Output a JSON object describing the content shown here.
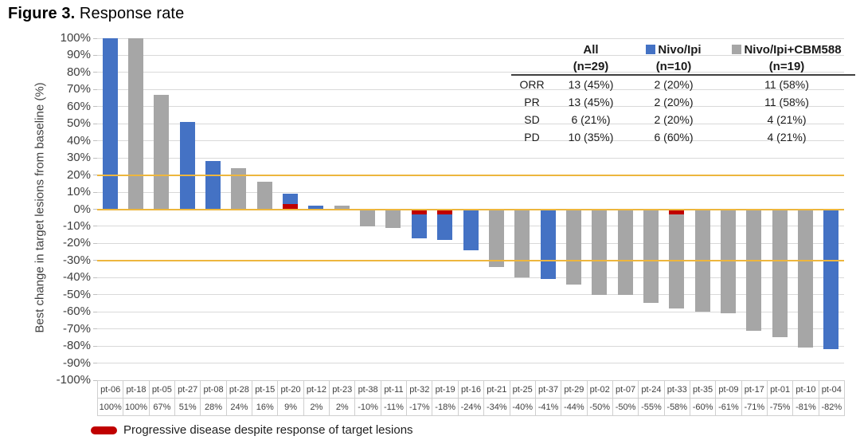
{
  "figure": {
    "label": "Figure 3.",
    "title": "Response rate"
  },
  "chart_data": {
    "type": "bar",
    "subtype": "waterfall",
    "title": "Figure 3. Response rate",
    "xlabel": "",
    "ylabel": "Best change in target lesions from baseline (%)",
    "ylim": [
      -100,
      100
    ],
    "ytick_step": 10,
    "ytick_labels": [
      "100%",
      "90%",
      "80%",
      "70%",
      "60%",
      "50%",
      "40%",
      "30%",
      "20%",
      "10%",
      "0%",
      "-10%",
      "-20%",
      "-30%",
      "-40%",
      "-50%",
      "-60%",
      "-70%",
      "-80%",
      "-90%",
      "-100%"
    ],
    "grid": true,
    "reference_lines": {
      "values": [
        20,
        0,
        -30
      ],
      "color": "#EDB63E"
    },
    "pd_segment_pct": 3,
    "series_legend": [
      {
        "name": "Nivo/Ipi",
        "color": "#4472C4"
      },
      {
        "name": "Nivo/Ipi+CBM588",
        "color": "#A6A6A6"
      }
    ],
    "patients": [
      {
        "id": "pt-06",
        "value": 100,
        "label": "100%",
        "group": "Nivo/Ipi",
        "pd_marker": false
      },
      {
        "id": "pt-18",
        "value": 100,
        "label": "100%",
        "group": "Nivo/Ipi+CBM588",
        "pd_marker": false
      },
      {
        "id": "pt-05",
        "value": 67,
        "label": "67%",
        "group": "Nivo/Ipi+CBM588",
        "pd_marker": false
      },
      {
        "id": "pt-27",
        "value": 51,
        "label": "51%",
        "group": "Nivo/Ipi",
        "pd_marker": false
      },
      {
        "id": "pt-08",
        "value": 28,
        "label": "28%",
        "group": "Nivo/Ipi",
        "pd_marker": false
      },
      {
        "id": "pt-28",
        "value": 24,
        "label": "24%",
        "group": "Nivo/Ipi+CBM588",
        "pd_marker": false
      },
      {
        "id": "pt-15",
        "value": 16,
        "label": "16%",
        "group": "Nivo/Ipi+CBM588",
        "pd_marker": false
      },
      {
        "id": "pt-20",
        "value": 9,
        "label": "9%",
        "group": "Nivo/Ipi",
        "pd_marker": true
      },
      {
        "id": "pt-12",
        "value": 2,
        "label": "2%",
        "group": "Nivo/Ipi",
        "pd_marker": false
      },
      {
        "id": "pt-23",
        "value": 2,
        "label": "2%",
        "group": "Nivo/Ipi+CBM588",
        "pd_marker": false
      },
      {
        "id": "pt-38",
        "value": -10,
        "label": "-10%",
        "group": "Nivo/Ipi+CBM588",
        "pd_marker": false
      },
      {
        "id": "pt-11",
        "value": -11,
        "label": "-11%",
        "group": "Nivo/Ipi+CBM588",
        "pd_marker": false
      },
      {
        "id": "pt-32",
        "value": -17,
        "label": "-17%",
        "group": "Nivo/Ipi",
        "pd_marker": true
      },
      {
        "id": "pt-19",
        "value": -18,
        "label": "-18%",
        "group": "Nivo/Ipi",
        "pd_marker": true
      },
      {
        "id": "pt-16",
        "value": -24,
        "label": "-24%",
        "group": "Nivo/Ipi",
        "pd_marker": false
      },
      {
        "id": "pt-21",
        "value": -34,
        "label": "-34%",
        "group": "Nivo/Ipi+CBM588",
        "pd_marker": false
      },
      {
        "id": "pt-25",
        "value": -40,
        "label": "-40%",
        "group": "Nivo/Ipi+CBM588",
        "pd_marker": false
      },
      {
        "id": "pt-37",
        "value": -41,
        "label": "-41%",
        "group": "Nivo/Ipi",
        "pd_marker": false
      },
      {
        "id": "pt-29",
        "value": -44,
        "label": "-44%",
        "group": "Nivo/Ipi+CBM588",
        "pd_marker": false
      },
      {
        "id": "pt-02",
        "value": -50,
        "label": "-50%",
        "group": "Nivo/Ipi+CBM588",
        "pd_marker": false
      },
      {
        "id": "pt-07",
        "value": -50,
        "label": "-50%",
        "group": "Nivo/Ipi+CBM588",
        "pd_marker": false
      },
      {
        "id": "pt-24",
        "value": -55,
        "label": "-55%",
        "group": "Nivo/Ipi+CBM588",
        "pd_marker": false
      },
      {
        "id": "pt-33",
        "value": -58,
        "label": "-58%",
        "group": "Nivo/Ipi+CBM588",
        "pd_marker": true
      },
      {
        "id": "pt-35",
        "value": -60,
        "label": "-60%",
        "group": "Nivo/Ipi+CBM588",
        "pd_marker": false
      },
      {
        "id": "pt-09",
        "value": -61,
        "label": "-61%",
        "group": "Nivo/Ipi+CBM588",
        "pd_marker": false
      },
      {
        "id": "pt-17",
        "value": -71,
        "label": "-71%",
        "group": "Nivo/Ipi+CBM588",
        "pd_marker": false
      },
      {
        "id": "pt-01",
        "value": -75,
        "label": "-75%",
        "group": "Nivo/Ipi+CBM588",
        "pd_marker": false
      },
      {
        "id": "pt-10",
        "value": -81,
        "label": "-81%",
        "group": "Nivo/Ipi+CBM588",
        "pd_marker": false
      },
      {
        "id": "pt-04",
        "value": -82,
        "label": "-82%",
        "group": "Nivo/Ipi",
        "pd_marker": false
      }
    ]
  },
  "inset_table": {
    "columns": [
      {
        "name": "All",
        "n": "(n=29)",
        "swatch": null
      },
      {
        "name": "Nivo/Ipi",
        "n": "(n=10)",
        "swatch": "#4472C4"
      },
      {
        "name": "Nivo/Ipi+CBM588",
        "n": "(n=19)",
        "swatch": "#A6A6A6"
      }
    ],
    "rows": [
      {
        "label": "ORR",
        "values": [
          "13 (45%)",
          "2 (20%)",
          "11 (58%)"
        ]
      },
      {
        "label": "PR",
        "values": [
          "13 (45%)",
          "2 (20%)",
          "11 (58%)"
        ]
      },
      {
        "label": "SD",
        "values": [
          "6 (21%)",
          "2 (20%)",
          "4 (21%)"
        ]
      },
      {
        "label": "PD",
        "values": [
          "10 (35%)",
          "6 (60%)",
          "4 (21%)"
        ]
      }
    ]
  },
  "pd_legend": {
    "text": "Progressive disease despite response of target lesions",
    "color": "#C00000"
  },
  "colors": {
    "bar_blue": "#4472C4",
    "bar_gray": "#A6A6A6",
    "pd_red": "#C00000",
    "ref_gold": "#EDB63E",
    "gridline": "#D9D9D9",
    "cell_border": "#CFCFCF",
    "text_dark": "#3F3F3F"
  }
}
